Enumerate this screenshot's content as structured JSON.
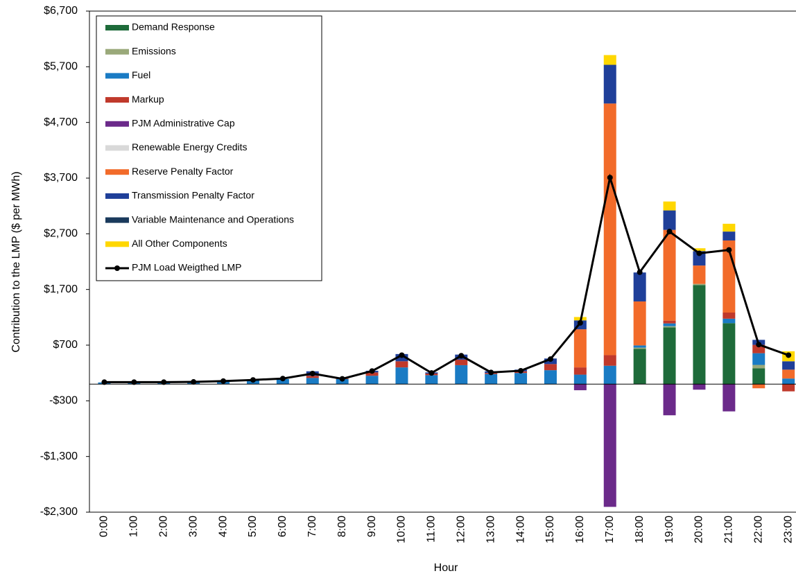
{
  "chart_data": {
    "type": "stacked_bar_line",
    "x_label": "Hour",
    "y_label": "Contribution to the LMP ($ per MWh)",
    "categories": [
      "0:00",
      "1:00",
      "2:00",
      "3:00",
      "4:00",
      "5:00",
      "6:00",
      "7:00",
      "8:00",
      "9:00",
      "10:00",
      "11:00",
      "12:00",
      "13:00",
      "14:00",
      "15:00",
      "16:00",
      "17:00",
      "18:00",
      "19:00",
      "20:00",
      "21:00",
      "22:00",
      "23:00"
    ],
    "ylim": [
      -2300,
      6700
    ],
    "yticks": [
      {
        "value": -2300,
        "label": "-$2,300"
      },
      {
        "value": -1300,
        "label": "-$1,300"
      },
      {
        "value": -300,
        "label": "-$300"
      },
      {
        "value": 700,
        "label": "$700"
      },
      {
        "value": 1700,
        "label": "$1,700"
      },
      {
        "value": 2700,
        "label": "$2,700"
      },
      {
        "value": 3700,
        "label": "$3,700"
      },
      {
        "value": 4700,
        "label": "$4,700"
      },
      {
        "value": 5700,
        "label": "$5,700"
      },
      {
        "value": 6700,
        "label": "$6,700"
      }
    ],
    "series": [
      {
        "name": "Demand Response",
        "color": "#1e6b3a",
        "values": [
          0,
          0,
          0,
          0,
          0,
          0,
          0,
          0,
          0,
          0,
          0,
          0,
          0,
          0,
          0,
          0,
          0,
          0,
          635,
          1020,
          1780,
          1095,
          285,
          0
        ]
      },
      {
        "name": "Emissions",
        "color": "#9aa97a",
        "values": [
          0,
          0,
          0,
          0,
          0,
          0,
          0,
          0,
          0,
          0,
          0,
          0,
          0,
          0,
          0,
          0,
          0,
          0,
          20,
          20,
          20,
          0,
          60,
          0
        ]
      },
      {
        "name": "Fuel",
        "color": "#1a7bc4",
        "values": [
          30,
          30,
          30,
          35,
          50,
          70,
          90,
          110,
          90,
          150,
          300,
          160,
          340,
          180,
          200,
          250,
          170,
          330,
          40,
          50,
          0,
          80,
          210,
          100
        ]
      },
      {
        "name": "Markup",
        "color": "#c0392b",
        "values": [
          0,
          0,
          0,
          0,
          0,
          0,
          0,
          40,
          10,
          60,
          110,
          30,
          100,
          20,
          30,
          110,
          130,
          190,
          0,
          50,
          0,
          110,
          150,
          -130
        ]
      },
      {
        "name": "PJM Administrative Cap",
        "color": "#6b2a8a",
        "values": [
          0,
          0,
          0,
          0,
          0,
          0,
          0,
          0,
          0,
          0,
          0,
          0,
          0,
          0,
          0,
          0,
          -110,
          -2205,
          0,
          -560,
          -100,
          -490,
          0,
          0
        ]
      },
      {
        "name": "Renewable Energy Credits",
        "color": "#d9d9d9",
        "values": [
          0,
          0,
          0,
          0,
          0,
          0,
          0,
          0,
          0,
          0,
          0,
          0,
          0,
          0,
          0,
          0,
          0,
          0,
          0,
          0,
          0,
          0,
          0,
          0
        ]
      },
      {
        "name": "Reserve Penalty Factor",
        "color": "#f26b2a",
        "values": [
          0,
          0,
          0,
          0,
          0,
          0,
          0,
          0,
          0,
          0,
          0,
          0,
          0,
          0,
          0,
          0,
          685,
          4520,
          790,
          1630,
          330,
          1295,
          -75,
          160
        ]
      },
      {
        "name": "Transmission Penalty Factor",
        "color": "#1f3f99",
        "values": [
          0,
          0,
          0,
          0,
          0,
          0,
          0,
          80,
          0,
          30,
          130,
          20,
          90,
          30,
          30,
          100,
          160,
          695,
          520,
          350,
          260,
          160,
          90,
          150
        ]
      },
      {
        "name": "Variable Maintenance and Operations",
        "color": "#1a3a5c",
        "values": [
          0,
          0,
          0,
          0,
          0,
          0,
          0,
          0,
          0,
          0,
          0,
          0,
          0,
          0,
          0,
          0,
          0,
          0,
          0,
          0,
          0,
          0,
          0,
          0
        ]
      },
      {
        "name": "All Other Components",
        "color": "#ffd700",
        "values": [
          0,
          0,
          0,
          0,
          0,
          0,
          0,
          0,
          0,
          0,
          0,
          0,
          0,
          0,
          0,
          0,
          60,
          175,
          0,
          160,
          50,
          140,
          0,
          180
        ]
      }
    ],
    "line": {
      "name": "PJM Load Weigthed LMP",
      "color": "#000000",
      "values": [
        35,
        35,
        35,
        40,
        55,
        75,
        100,
        190,
        95,
        235,
        520,
        200,
        510,
        210,
        240,
        450,
        1100,
        3710,
        2010,
        2740,
        2350,
        2410,
        710,
        520
      ]
    }
  }
}
